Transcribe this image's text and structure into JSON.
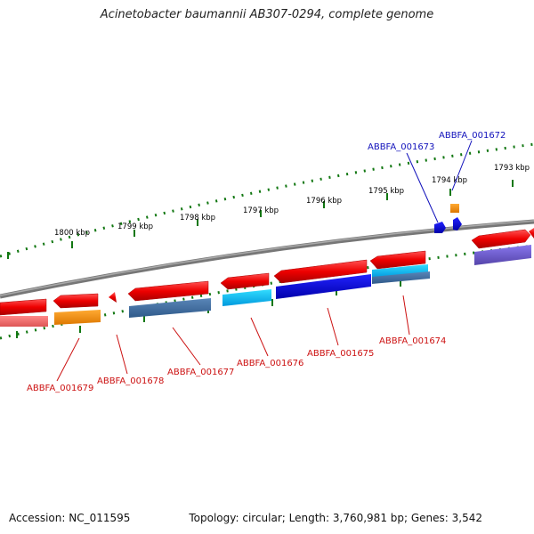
{
  "title": "Acinetobacter baumannii AB307-0294, complete genome",
  "footer": {
    "accession": "Accession: NC_011595",
    "summary": "Topology: circular; Length: 3,760,981 bp; Genes: 3,542"
  },
  "scale_labels": [
    "1800 kbp",
    "1799 kbp",
    "1798 kbp",
    "1797 kbp",
    "1796 kbp",
    "1795 kbp",
    "1794 kbp",
    "1793 kbp"
  ],
  "gene_labels_top": [
    "ABBFA_001673",
    "ABBFA_001672"
  ],
  "gene_labels_bottom": [
    "ABBFA_001679",
    "ABBFA_001678",
    "ABBFA_001677",
    "ABBFA_001676",
    "ABBFA_001675",
    "ABBFA_001674"
  ],
  "colors": {
    "cds": "#ee1111",
    "label_blue": "#1111bb",
    "label_red": "#cc1111",
    "backbone": "#888888",
    "tick": "#117711"
  }
}
